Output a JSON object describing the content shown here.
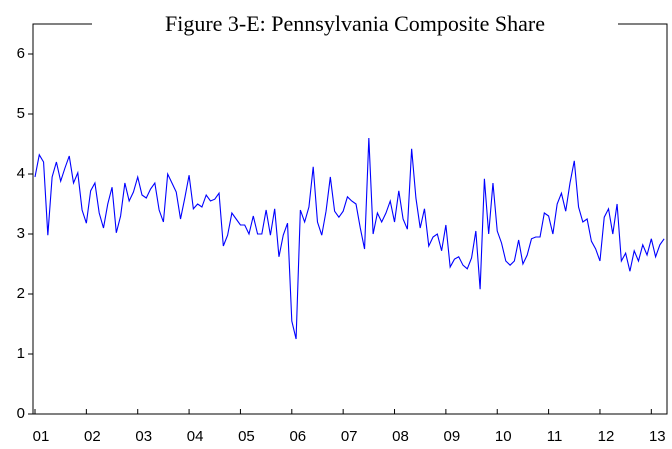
{
  "chart_data": {
    "type": "line",
    "title": "Figure 3-E: Pennsylvania Composite Share",
    "categories": [
      "01",
      null,
      null,
      null,
      null,
      null,
      null,
      null,
      null,
      null,
      null,
      null,
      "02",
      null,
      null,
      null,
      null,
      null,
      null,
      null,
      null,
      null,
      null,
      null,
      "03",
      null,
      null,
      null,
      null,
      null,
      null,
      null,
      null,
      null,
      null,
      null,
      "04",
      null,
      null,
      null,
      null,
      null,
      null,
      null,
      null,
      null,
      null,
      null,
      "05",
      null,
      null,
      null,
      null,
      null,
      null,
      null,
      null,
      null,
      null,
      null,
      "06",
      null,
      null,
      null,
      null,
      null,
      null,
      null,
      null,
      null,
      null,
      null,
      "07",
      null,
      null,
      null,
      null,
      null,
      null,
      null,
      null,
      null,
      null,
      null,
      "08",
      null,
      null,
      null,
      null,
      null,
      null,
      null,
      null,
      null,
      null,
      null,
      "09",
      null,
      null,
      null,
      null,
      null,
      null,
      null,
      null,
      null,
      null,
      null,
      "10",
      null,
      null,
      null,
      null,
      null,
      null,
      null,
      null,
      null,
      null,
      null,
      "11",
      null,
      null,
      null,
      null,
      null,
      null,
      null,
      null,
      null,
      null,
      null,
      "12",
      null,
      null,
      null,
      null,
      null,
      null,
      null,
      null,
      null,
      null,
      null,
      "13",
      null,
      null,
      null
    ],
    "values": [
      3.95,
      4.32,
      4.2,
      2.98,
      3.95,
      4.2,
      3.88,
      4.1,
      4.3,
      3.85,
      4.02,
      3.4,
      3.18,
      3.72,
      3.85,
      3.35,
      3.1,
      3.5,
      3.78,
      3.02,
      3.3,
      3.85,
      3.55,
      3.7,
      3.95,
      3.65,
      3.6,
      3.75,
      3.85,
      3.4,
      3.2,
      4.0,
      3.85,
      3.7,
      3.25,
      3.6,
      3.98,
      3.42,
      3.5,
      3.45,
      3.65,
      3.55,
      3.58,
      3.68,
      2.8,
      2.98,
      3.35,
      3.25,
      3.15,
      3.15,
      3.0,
      3.3,
      3.0,
      3.0,
      3.4,
      2.98,
      3.42,
      2.62,
      2.98,
      3.18,
      1.55,
      1.25,
      3.4,
      3.2,
      3.45,
      4.12,
      3.2,
      2.98,
      3.38,
      3.95,
      3.38,
      3.28,
      3.38,
      3.62,
      3.55,
      3.5,
      3.1,
      2.75,
      4.6,
      3.0,
      3.35,
      3.2,
      3.35,
      3.55,
      3.2,
      3.72,
      3.25,
      3.08,
      4.42,
      3.6,
      3.1,
      3.42,
      2.8,
      2.95,
      3.0,
      2.72,
      3.15,
      2.45,
      2.58,
      2.62,
      2.48,
      2.42,
      2.6,
      3.05,
      2.08,
      3.92,
      3.0,
      3.85,
      3.05,
      2.85,
      2.55,
      2.48,
      2.55,
      2.9,
      2.5,
      2.65,
      2.92,
      2.95,
      2.95,
      3.35,
      3.3,
      3.0,
      3.5,
      3.68,
      3.38,
      3.85,
      4.22,
      3.45,
      3.2,
      3.25,
      2.88,
      2.75,
      2.55,
      3.28,
      3.42,
      3.0,
      3.5,
      2.55,
      2.68,
      2.38,
      2.72,
      2.55,
      2.82,
      2.65,
      2.92,
      2.62,
      2.82,
      2.92
    ],
    "color": "#0000ff",
    "ylim": [
      0,
      6.5
    ],
    "yticks": [
      0,
      1,
      2,
      3,
      4,
      5,
      6
    ]
  }
}
